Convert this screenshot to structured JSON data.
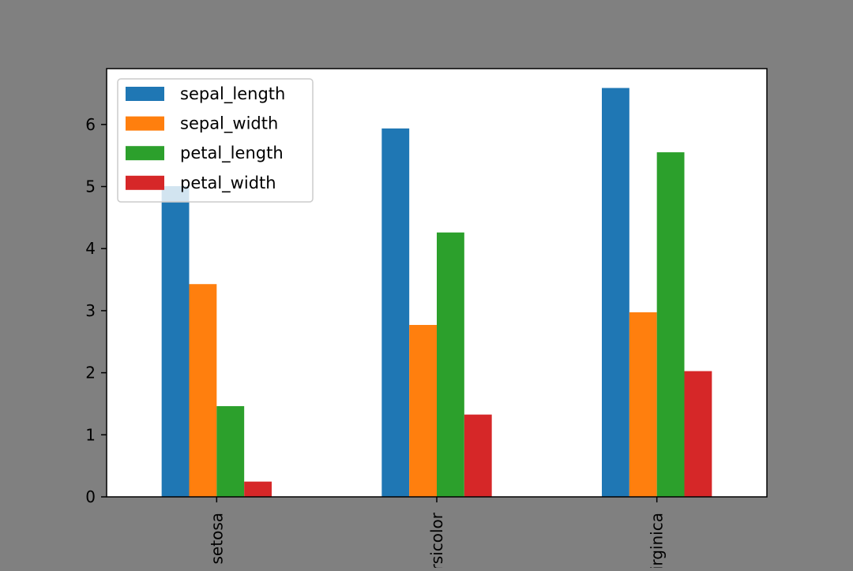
{
  "chart_data": {
    "type": "bar",
    "title": "",
    "xlabel": "",
    "ylabel": "",
    "categories": [
      "setosa",
      "versicolor",
      "virginica"
    ],
    "ylim": [
      0,
      6.9
    ],
    "yticks": [
      0,
      1,
      2,
      3,
      4,
      5,
      6
    ],
    "grid": false,
    "legend_position": "top-left",
    "x_tick_rotation": 90,
    "series": [
      {
        "name": "sepal_length",
        "color": "#1f77b4",
        "values": [
          5.006,
          5.936,
          6.588
        ]
      },
      {
        "name": "sepal_width",
        "color": "#ff7f0e",
        "values": [
          3.428,
          2.77,
          2.974
        ]
      },
      {
        "name": "petal_length",
        "color": "#2ca02c",
        "values": [
          1.462,
          4.26,
          5.552
        ]
      },
      {
        "name": "petal_width",
        "color": "#d62728",
        "values": [
          0.246,
          1.326,
          2.026
        ]
      }
    ]
  },
  "colors": {
    "figure_background": "#808080",
    "axes_background": "#ffffff"
  }
}
